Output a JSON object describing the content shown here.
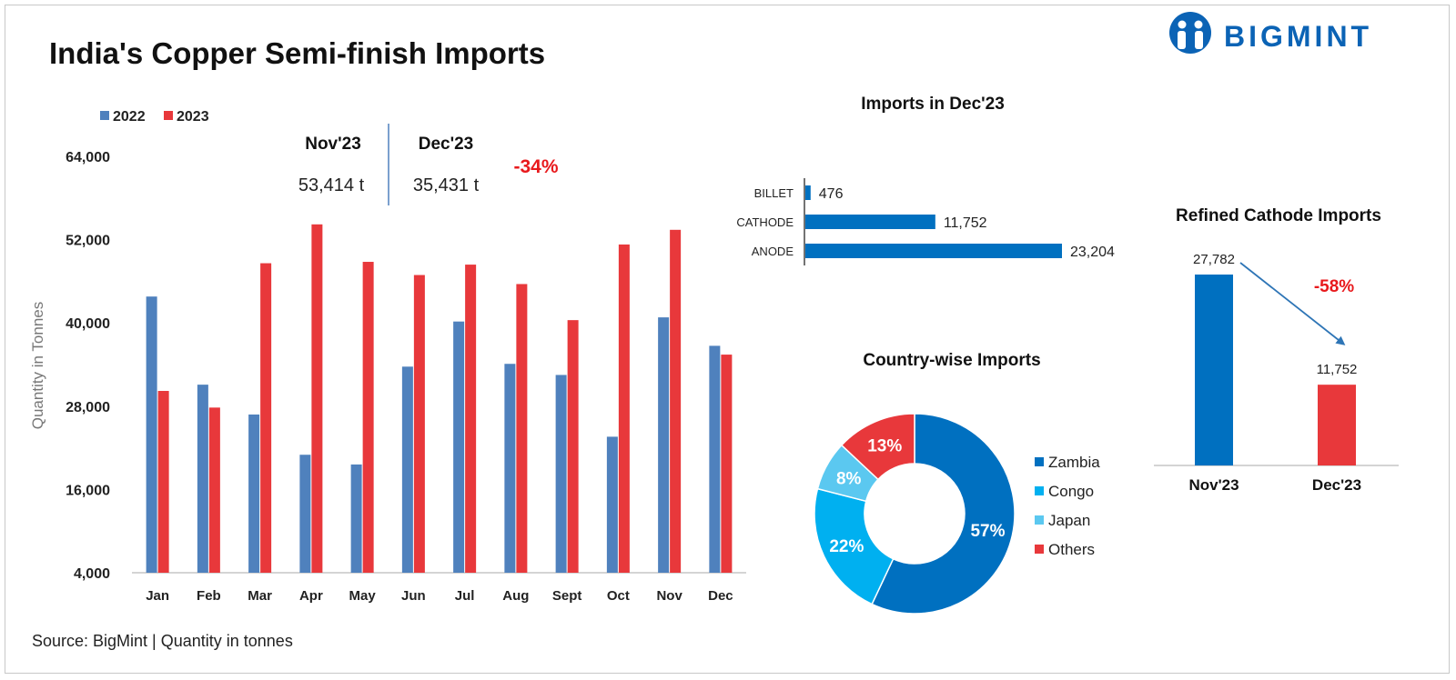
{
  "header": {
    "title": "India's Copper Semi-finish Imports",
    "brand": "BIGMINT"
  },
  "footer": {
    "source": "Source: BigMint | Quantity in tonnes"
  },
  "summary": {
    "nov_label": "Nov'23",
    "nov_value": "53,414 t",
    "dec_label": "Dec'23",
    "dec_value": "35,431 t",
    "change": "-34%"
  },
  "colors": {
    "series_2022": "#4F81BD",
    "series_2023": "#E8383B",
    "zambia": "#0070C0",
    "congo": "#00B0F0",
    "japan": "#5BC8F0",
    "others": "#E8383B",
    "bar_blue": "#0070C0",
    "negative": "#E8191C"
  },
  "chart_data": [
    {
      "id": "monthly",
      "type": "bar",
      "title": "",
      "xlabel": "",
      "ylabel": "Quantity in Tonnes",
      "ylim": [
        4000,
        64000
      ],
      "yticks": [
        4000,
        16000,
        28000,
        40000,
        52000,
        64000
      ],
      "ytick_labels": [
        "4,000",
        "16,000",
        "28,000",
        "40,000",
        "52,000",
        "64,000"
      ],
      "categories": [
        "Jan",
        "Feb",
        "Mar",
        "Apr",
        "May",
        "Jun",
        "Jul",
        "Aug",
        "Sept",
        "Oct",
        "Nov",
        "Dec"
      ],
      "series": [
        {
          "name": "2022",
          "values": [
            43800,
            31100,
            26800,
            21000,
            19600,
            33700,
            40200,
            34100,
            32500,
            23600,
            40800,
            36700
          ]
        },
        {
          "name": "2023",
          "values": [
            30200,
            27800,
            48600,
            54200,
            48800,
            46900,
            48400,
            45600,
            40400,
            51300,
            53414,
            35431
          ]
        }
      ],
      "legend": "top-left"
    },
    {
      "id": "products",
      "type": "bar",
      "orientation": "horizontal",
      "title": "Imports in Dec'23",
      "categories": [
        "BILLET",
        "CATHODE",
        "ANODE"
      ],
      "values": [
        476,
        11752,
        23204
      ],
      "value_labels": [
        "476",
        "11,752",
        "23,204"
      ]
    },
    {
      "id": "countries",
      "type": "pie",
      "title": "Country-wise Imports",
      "donut": true,
      "labels": [
        "Zambia",
        "Congo",
        "Japan",
        "Others"
      ],
      "values": [
        57,
        22,
        8,
        13
      ],
      "value_labels": [
        "57%",
        "22%",
        "8%",
        "13%"
      ],
      "legend": "right"
    },
    {
      "id": "cathode",
      "type": "bar",
      "title": "Refined Cathode Imports",
      "categories": [
        "Nov'23",
        "Dec'23"
      ],
      "values": [
        27782,
        11752
      ],
      "value_labels": [
        "27,782",
        "11,752"
      ],
      "change": "-58%"
    }
  ]
}
